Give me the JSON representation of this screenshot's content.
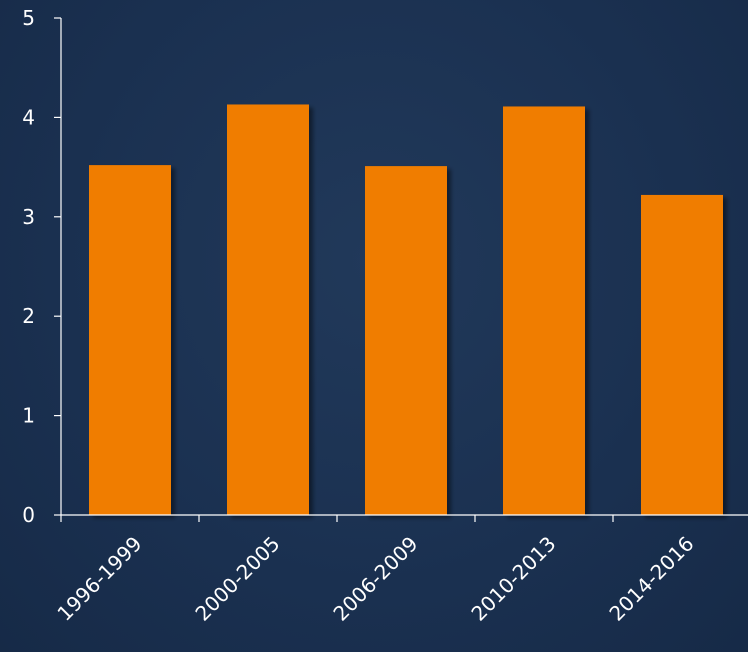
{
  "chart_data": {
    "type": "bar",
    "categories": [
      "1996-1999",
      "2000-2005",
      "2006-2009",
      "2010-2013",
      "2014-2016"
    ],
    "values": [
      3.52,
      4.13,
      3.51,
      4.11,
      3.22
    ],
    "ylim": [
      0,
      5
    ],
    "yticks": [
      "0",
      "1",
      "2",
      "3",
      "4",
      "5"
    ],
    "grid": false,
    "title": "",
    "xlabel": "",
    "ylabel": "",
    "colors": {
      "bar": "#f07d00",
      "background": "#1b3150",
      "axis": "#ffffff",
      "text": "#ffffff"
    }
  }
}
